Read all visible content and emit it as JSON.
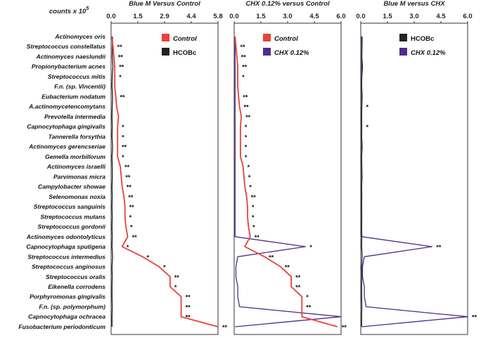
{
  "chart_data": {
    "type": "line",
    "axis_unit": "counts x 10",
    "axis_exponent": "5",
    "categories": [
      "Actinomyces oris",
      "Streptococcus constellatus",
      "Actinomyces naeslundii",
      "Propionybacterium acnes",
      "Streptococcus mitis",
      "F.n. (sp. Vincentii)",
      "Eubacterium nodatum",
      "A.actinomycetencomytans",
      "Prevotella intermedia",
      "Capnocytophaga gingivalis",
      "Tannerella forsythia",
      "Actinomyces gerencseriae",
      "Gemella morbillorum",
      "Actinomyces israelli",
      "Parvimonas micra",
      "Campylobacter showae",
      "Selenomonas noxia",
      "Streptococcus sanguinis",
      "Streptococcus mutans",
      "Streptococcus gordonii",
      "Actinomyces odontolyticus",
      "Capnocytophaga sputigena",
      "Streptococcus intermedius",
      "Streptococcus anginosus",
      "Streptococcus oralis",
      "Eikenella corrodens",
      "Porphyromonas gingivalis",
      "F.n. (sp. polymorphum)",
      "Capnocytophaga ochracea",
      "Fusobacterium periodonticum"
    ],
    "panels": [
      {
        "title": "Blue M  Versus Control",
        "xlim": [
          0,
          5.8
        ],
        "ticks": [
          "0.0",
          "1.5",
          "2.9",
          "4.4",
          "5.8"
        ],
        "legend": [
          "Control",
          "HCOBc"
        ],
        "series": [
          {
            "name": "Control",
            "color": "#e8413a",
            "values": [
              0.05,
              0.1,
              0.15,
              0.2,
              0.2,
              0.2,
              0.25,
              0.3,
              0.4,
              0.35,
              0.35,
              0.35,
              0.35,
              0.5,
              0.55,
              0.6,
              0.7,
              0.75,
              0.75,
              0.8,
              0.9,
              0.6,
              1.7,
              2.6,
              3.2,
              3.2,
              3.8,
              3.8,
              3.8,
              5.8
            ]
          },
          {
            "name": "HCOBc",
            "color": "#222222",
            "values": [
              0.08,
              0.07,
              0.06,
              0.1,
              0.06,
              0.05,
              0.08,
              0.06,
              0.05,
              0.06,
              0.05,
              0.08,
              0.05,
              0.06,
              0.07,
              0.05,
              0.06,
              0.05,
              0.06,
              0.05,
              0.06,
              0.05,
              0.08,
              0.05,
              0.06,
              0.05,
              0.05,
              0.06,
              0.05,
              0.05
            ]
          }
        ],
        "significance": [
          "",
          "**",
          "**",
          "**",
          "*",
          "",
          "**",
          "",
          "",
          "*",
          "*",
          "**",
          "*",
          "**",
          "**",
          "**",
          "**",
          "**",
          "*",
          "*",
          "**",
          "*",
          "*",
          "*",
          "**",
          "*",
          "**",
          "**",
          "**",
          "**"
        ]
      },
      {
        "title": "CHX 0.12% versus Control",
        "xlim": [
          0,
          6.0
        ],
        "ticks": [
          "0.0",
          "1.5",
          "3.0",
          "4.5",
          "6.0"
        ],
        "legend": [
          "Control",
          "CHX 0.12%"
        ],
        "series": [
          {
            "name": "Control",
            "color": "#e8413a",
            "values": [
              0.05,
              0.1,
              0.15,
              0.2,
              0.2,
              0.2,
              0.25,
              0.3,
              0.4,
              0.35,
              0.35,
              0.35,
              0.35,
              0.5,
              0.55,
              0.6,
              0.7,
              0.75,
              0.75,
              0.8,
              0.9,
              0.6,
              1.7,
              2.6,
              3.2,
              3.2,
              3.8,
              3.8,
              3.8,
              5.8
            ]
          },
          {
            "name": "CHX 0.12%",
            "color": "#4b2d8c",
            "values": [
              0.05,
              0.05,
              0.05,
              0.05,
              0.05,
              0.05,
              0.05,
              0.05,
              0.05,
              0.05,
              0.05,
              0.05,
              0.05,
              0.05,
              0.05,
              0.05,
              0.05,
              0.05,
              0.05,
              0.05,
              0.05,
              4.0,
              0.2,
              0.1,
              0.1,
              0.2,
              0.2,
              0.3,
              6.0,
              0.05
            ]
          }
        ],
        "significance": [
          "",
          "**",
          "**",
          "**",
          "*",
          "",
          "**",
          "**",
          "**",
          "*",
          "*",
          "*",
          "*",
          "*",
          "*",
          "*",
          "**",
          "*",
          "*",
          "*",
          "**",
          "*",
          "**",
          "**",
          "**",
          "**",
          "*",
          "**",
          "",
          "**"
        ]
      },
      {
        "title": "Blue M versus CHX",
        "xlim": [
          0,
          6.0
        ],
        "ticks": [
          "0.0",
          "1.5",
          "3.0",
          "4.5",
          "6.0"
        ],
        "legend": [
          "HCOBc",
          "CHX 0.12%"
        ],
        "series": [
          {
            "name": "HCOBc",
            "color": "#222222",
            "values": [
              0.08,
              0.07,
              0.06,
              0.1,
              0.06,
              0.05,
              0.08,
              0.06,
              0.05,
              0.06,
              0.05,
              0.08,
              0.05,
              0.06,
              0.07,
              0.05,
              0.06,
              0.05,
              0.06,
              0.05,
              0.06,
              0.05,
              0.08,
              0.05,
              0.06,
              0.05,
              0.05,
              0.06,
              0.05,
              0.05
            ]
          },
          {
            "name": "CHX 0.12%",
            "color": "#4b2d8c",
            "values": [
              0.05,
              0.05,
              0.05,
              0.05,
              0.05,
              0.05,
              0.05,
              0.05,
              0.05,
              0.05,
              0.05,
              0.05,
              0.05,
              0.05,
              0.05,
              0.05,
              0.05,
              0.05,
              0.05,
              0.05,
              0.05,
              4.0,
              0.2,
              0.1,
              0.1,
              0.2,
              0.2,
              0.3,
              6.0,
              0.05
            ]
          }
        ],
        "significance": [
          "",
          "",
          "",
          "",
          "",
          "",
          "",
          "*",
          "",
          "*",
          "",
          "",
          "",
          "",
          "",
          "",
          "",
          "",
          "",
          "",
          "",
          "**",
          "",
          "",
          "",
          "",
          "",
          "",
          "**",
          ""
        ]
      }
    ]
  }
}
